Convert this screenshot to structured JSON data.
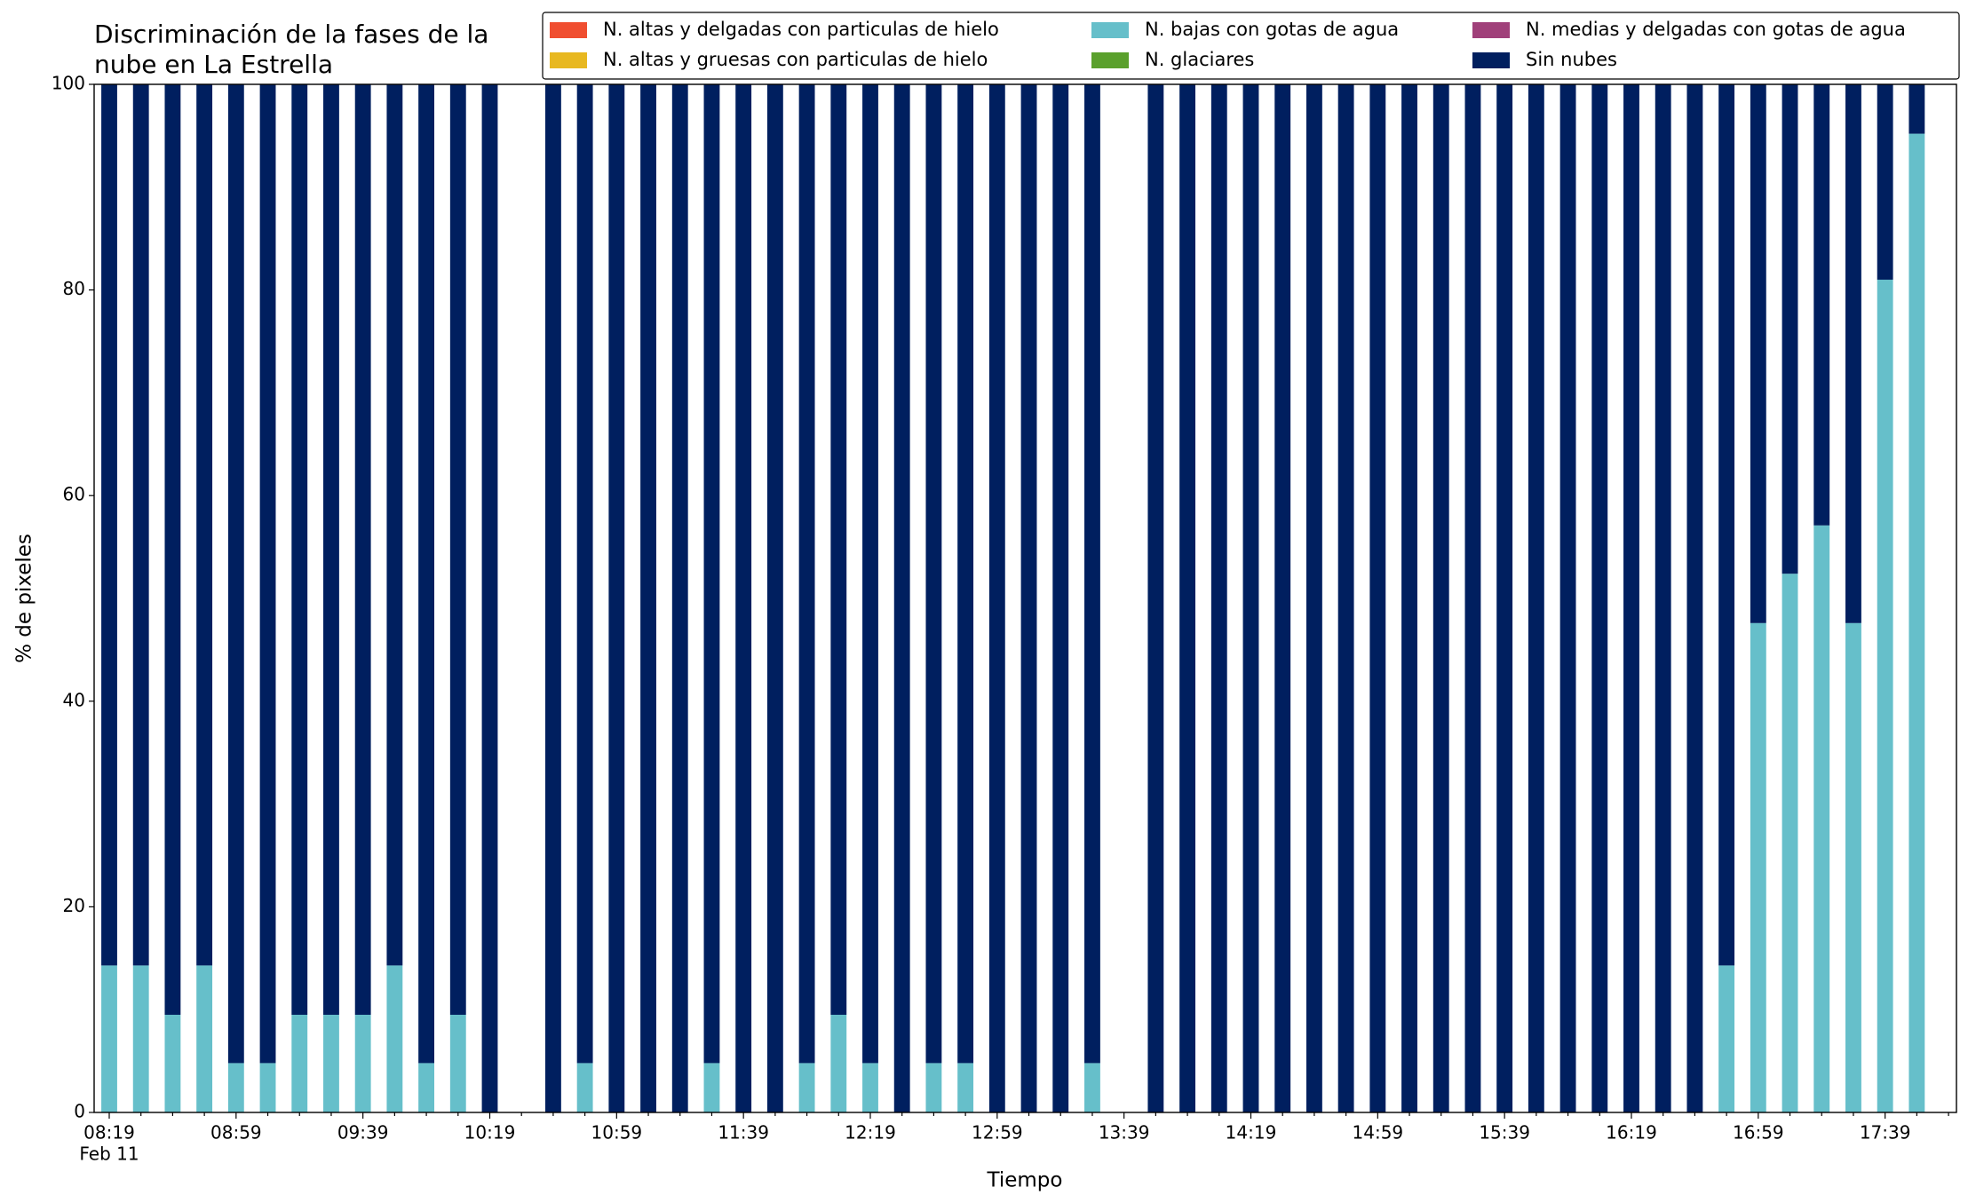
{
  "chart_data": {
    "type": "stacked_bar",
    "title": [
      "Discriminación de la fases de la",
      "nube en La Estrella"
    ],
    "x_label": "Tiempo",
    "x_sublabel": "Feb 11",
    "y_label": "% de pixeles",
    "categories": [
      "08:19",
      null,
      null,
      null,
      "08:59",
      null,
      null,
      null,
      "09:39",
      null,
      null,
      null,
      "10:19",
      null,
      null,
      null,
      "10:59",
      null,
      null,
      null,
      "11:39",
      null,
      null,
      null,
      "12:19",
      null,
      null,
      null,
      "12:59",
      null,
      null,
      null,
      "13:39",
      null,
      null,
      null,
      "14:19",
      null,
      null,
      null,
      "14:59",
      null,
      null,
      null,
      "15:39",
      null,
      null,
      null,
      "16:19",
      null,
      null,
      null,
      "16:59",
      null,
      null,
      null,
      "17:39",
      null
    ],
    "series": [
      {
        "name": "N. altas y delgadas con particulas de hielo",
        "color": "#f04e30",
        "values": [
          0,
          0,
          0,
          0,
          0,
          0,
          0,
          0,
          0,
          0,
          0,
          0,
          0,
          null,
          0,
          0,
          0,
          0,
          0,
          0,
          0,
          0,
          0,
          0,
          0,
          0,
          0,
          0,
          0,
          0,
          0,
          0,
          null,
          0,
          0,
          0,
          0,
          0,
          0,
          0,
          0,
          0,
          0,
          0,
          0,
          0,
          0,
          0,
          0,
          0,
          0,
          0,
          0,
          0,
          0,
          0,
          0,
          0
        ]
      },
      {
        "name": "N. altas y gruesas con particulas de hielo",
        "color": "#e8b820",
        "values": [
          0,
          0,
          0,
          0,
          0,
          0,
          0,
          0,
          0,
          0,
          0,
          0,
          0,
          null,
          0,
          0,
          0,
          0,
          0,
          0,
          0,
          0,
          0,
          0,
          0,
          0,
          0,
          0,
          0,
          0,
          0,
          0,
          null,
          0,
          0,
          0,
          0,
          0,
          0,
          0,
          0,
          0,
          0,
          0,
          0,
          0,
          0,
          0,
          0,
          0,
          0,
          0,
          0,
          0,
          0,
          0,
          0,
          0
        ]
      },
      {
        "name": "N. bajas con gotas de agua",
        "color": "#66bfca",
        "values": [
          14.3,
          14.3,
          9.5,
          14.3,
          4.8,
          4.8,
          9.5,
          9.5,
          9.5,
          14.3,
          4.8,
          9.5,
          0,
          null,
          0,
          4.8,
          0,
          0,
          0,
          4.8,
          0,
          0,
          4.8,
          9.5,
          4.8,
          0,
          4.8,
          4.8,
          0,
          0,
          0,
          4.8,
          null,
          0,
          0,
          0,
          0,
          0,
          0,
          0,
          0,
          0,
          0,
          0,
          0,
          0,
          0,
          0,
          0,
          0,
          0,
          14.3,
          47.6,
          52.4,
          57.1,
          47.6,
          81.0,
          95.2
        ]
      },
      {
        "name": "N. glaciares",
        "color": "#5aa02c",
        "values": [
          0,
          0,
          0,
          0,
          0,
          0,
          0,
          0,
          0,
          0,
          0,
          0,
          0,
          null,
          0,
          0,
          0,
          0,
          0,
          0,
          0,
          0,
          0,
          0,
          0,
          0,
          0,
          0,
          0,
          0,
          0,
          0,
          null,
          0,
          0,
          0,
          0,
          0,
          0,
          0,
          0,
          0,
          0,
          0,
          0,
          0,
          0,
          0,
          0,
          0,
          0,
          0,
          0,
          0,
          0,
          0,
          0,
          0
        ]
      },
      {
        "name": "N. medias y delgadas con gotas de agua",
        "color": "#a0407a",
        "values": [
          0,
          0,
          0,
          0,
          0,
          0,
          0,
          0,
          0,
          0,
          0,
          0,
          0,
          null,
          0,
          0,
          0,
          0,
          0,
          0,
          0,
          0,
          0,
          0,
          0,
          0,
          0,
          0,
          0,
          0,
          0,
          0,
          null,
          0,
          0,
          0,
          0,
          0,
          0,
          0,
          0,
          0,
          0,
          0,
          0,
          0,
          0,
          0,
          0,
          0,
          0,
          0,
          0,
          0,
          0,
          0,
          0,
          0
        ]
      },
      {
        "name": "Sin nubes",
        "color": "#001f5f",
        "values": [
          85.7,
          85.7,
          90.5,
          85.7,
          95.2,
          95.2,
          90.5,
          90.5,
          90.5,
          85.7,
          95.2,
          90.5,
          100,
          null,
          100,
          95.2,
          100,
          100,
          100,
          95.2,
          100,
          100,
          95.2,
          90.5,
          95.2,
          100,
          95.2,
          95.2,
          100,
          100,
          100,
          95.2,
          null,
          100,
          100,
          100,
          100,
          100,
          100,
          100,
          100,
          100,
          100,
          100,
          100,
          100,
          100,
          100,
          100,
          100,
          100,
          85.7,
          52.4,
          47.6,
          42.9,
          52.4,
          19.0,
          4.8
        ]
      }
    ],
    "ylim": [
      0,
      100
    ],
    "yticks": [
      0,
      20,
      40,
      60,
      80,
      100
    ],
    "grid": false,
    "legend": "upper right"
  }
}
